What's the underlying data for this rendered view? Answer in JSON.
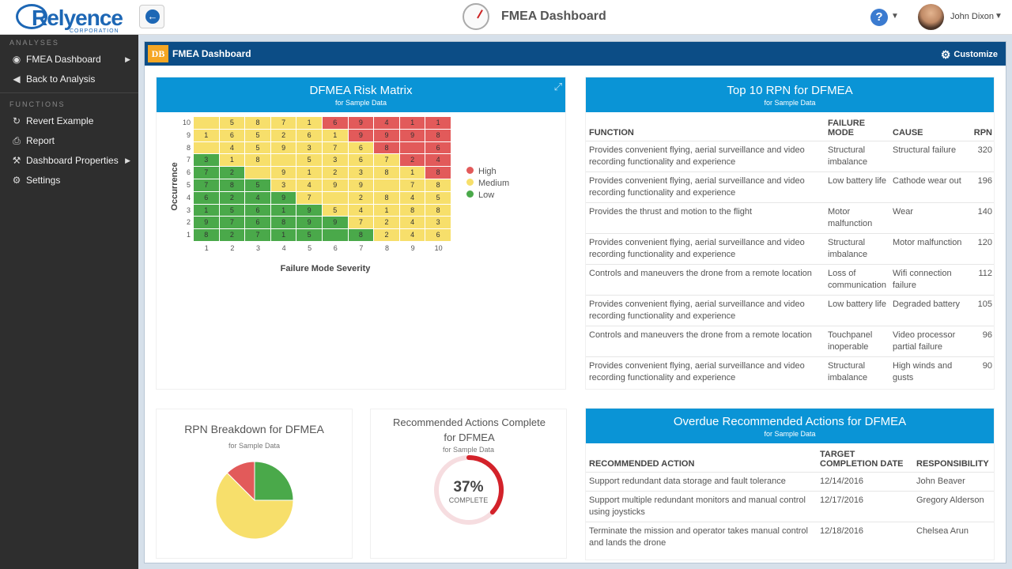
{
  "header": {
    "logo_text": "Relyence",
    "logo_sub": "CORPORATION",
    "title": "FMEA Dashboard",
    "user": "John Dixon"
  },
  "sidebar": {
    "analyses_label": "ANALYSES",
    "functions_label": "FUNCTIONS",
    "analyses": [
      {
        "label": "FMEA Dashboard",
        "icon": "dashboard-icon"
      },
      {
        "label": "Back to Analysis",
        "icon": "back-arrow-icon"
      }
    ],
    "functions": [
      {
        "label": "Revert Example",
        "icon": "revert-icon"
      },
      {
        "label": "Report",
        "icon": "print-icon"
      },
      {
        "label": "Dashboard Properties",
        "icon": "wrench-icon"
      },
      {
        "label": "Settings",
        "icon": "gear-icon"
      }
    ]
  },
  "panel": {
    "badge": "DB",
    "title": "FMEA Dashboard",
    "customize": "Customize"
  },
  "risk_matrix": {
    "title": "DFMEA Risk Matrix",
    "subtitle": "for Sample Data",
    "ylabel": "Occurrence",
    "xlabel": "Failure Mode Severity",
    "legend": [
      {
        "label": "High",
        "color": "#e25a5a"
      },
      {
        "label": "Medium",
        "color": "#f7df6b"
      },
      {
        "label": "Low",
        "color": "#4aa94a"
      }
    ],
    "colors": {
      "H": "#e25a5a",
      "M": "#f7df6b",
      "L": "#4aa94a"
    },
    "rows": [
      {
        "occ": "10",
        "cells": [
          [
            "M",
            ""
          ],
          [
            "M",
            "5"
          ],
          [
            "M",
            "8"
          ],
          [
            "M",
            "7"
          ],
          [
            "M",
            "1"
          ],
          [
            "H",
            "6"
          ],
          [
            "H",
            "9"
          ],
          [
            "H",
            "4"
          ],
          [
            "H",
            "1"
          ],
          [
            "H",
            "1"
          ]
        ]
      },
      {
        "occ": "9",
        "cells": [
          [
            "M",
            "1"
          ],
          [
            "M",
            "6"
          ],
          [
            "M",
            "5"
          ],
          [
            "M",
            "2"
          ],
          [
            "M",
            "6"
          ],
          [
            "M",
            "1"
          ],
          [
            "H",
            "9"
          ],
          [
            "H",
            "9"
          ],
          [
            "H",
            "9"
          ],
          [
            "H",
            "8"
          ]
        ]
      },
      {
        "occ": "8",
        "cells": [
          [
            "M",
            ""
          ],
          [
            "M",
            "4"
          ],
          [
            "M",
            "5"
          ],
          [
            "M",
            "9"
          ],
          [
            "M",
            "3"
          ],
          [
            "M",
            "7"
          ],
          [
            "M",
            "6"
          ],
          [
            "H",
            "8"
          ],
          [
            "H",
            ""
          ],
          [
            "H",
            "6"
          ]
        ]
      },
      {
        "occ": "7",
        "cells": [
          [
            "L",
            "3"
          ],
          [
            "M",
            "1"
          ],
          [
            "M",
            "8"
          ],
          [
            "M",
            ""
          ],
          [
            "M",
            "5"
          ],
          [
            "M",
            "3"
          ],
          [
            "M",
            "6"
          ],
          [
            "M",
            "7"
          ],
          [
            "H",
            "2"
          ],
          [
            "H",
            "4"
          ]
        ]
      },
      {
        "occ": "6",
        "cells": [
          [
            "L",
            "7"
          ],
          [
            "L",
            "2"
          ],
          [
            "M",
            ""
          ],
          [
            "M",
            "9"
          ],
          [
            "M",
            "1"
          ],
          [
            "M",
            "2"
          ],
          [
            "M",
            "3"
          ],
          [
            "M",
            "8"
          ],
          [
            "M",
            "1"
          ],
          [
            "H",
            "8"
          ]
        ]
      },
      {
        "occ": "5",
        "cells": [
          [
            "L",
            "7"
          ],
          [
            "L",
            "8"
          ],
          [
            "L",
            "5"
          ],
          [
            "M",
            "3"
          ],
          [
            "M",
            "4"
          ],
          [
            "M",
            "9"
          ],
          [
            "M",
            "9"
          ],
          [
            "M",
            ""
          ],
          [
            "M",
            "7"
          ],
          [
            "M",
            "8"
          ]
        ]
      },
      {
        "occ": "4",
        "cells": [
          [
            "L",
            "6"
          ],
          [
            "L",
            "2"
          ],
          [
            "L",
            "4"
          ],
          [
            "L",
            "9"
          ],
          [
            "M",
            "7"
          ],
          [
            "M",
            ""
          ],
          [
            "M",
            "2"
          ],
          [
            "M",
            "8"
          ],
          [
            "M",
            "4"
          ],
          [
            "M",
            "5"
          ]
        ]
      },
      {
        "occ": "3",
        "cells": [
          [
            "L",
            "1"
          ],
          [
            "L",
            "5"
          ],
          [
            "L",
            "6"
          ],
          [
            "L",
            "1"
          ],
          [
            "L",
            "9"
          ],
          [
            "M",
            "5"
          ],
          [
            "M",
            "4"
          ],
          [
            "M",
            "1"
          ],
          [
            "M",
            "8"
          ],
          [
            "M",
            "8"
          ]
        ]
      },
      {
        "occ": "2",
        "cells": [
          [
            "L",
            "9"
          ],
          [
            "L",
            "7"
          ],
          [
            "L",
            "6"
          ],
          [
            "L",
            "8"
          ],
          [
            "L",
            "9"
          ],
          [
            "L",
            "9"
          ],
          [
            "M",
            "7"
          ],
          [
            "M",
            "2"
          ],
          [
            "M",
            "4"
          ],
          [
            "M",
            "3"
          ]
        ]
      },
      {
        "occ": "1",
        "cells": [
          [
            "L",
            "8"
          ],
          [
            "L",
            "2"
          ],
          [
            "L",
            "7"
          ],
          [
            "L",
            "1"
          ],
          [
            "L",
            "5"
          ],
          [
            "L",
            ""
          ],
          [
            "L",
            "8"
          ],
          [
            "M",
            "2"
          ],
          [
            "M",
            "4"
          ],
          [
            "M",
            "6"
          ]
        ]
      }
    ],
    "severity": [
      "1",
      "2",
      "3",
      "4",
      "5",
      "6",
      "7",
      "8",
      "9",
      "10"
    ]
  },
  "top_rpn": {
    "title": "Top 10 RPN for DFMEA",
    "subtitle": "for Sample Data",
    "columns": [
      "FUNCTION",
      "FAILURE MODE",
      "CAUSE",
      "RPN"
    ],
    "rows": [
      [
        "Provides convenient flying, aerial surveillance and video recording functionality and experience",
        "Structural imbalance",
        "Structural failure",
        "320"
      ],
      [
        "Provides convenient flying, aerial surveillance and video recording functionality and experience",
        "Low battery life",
        "Cathode wear out",
        "196"
      ],
      [
        "Provides the thrust and motion to the flight",
        "Motor malfunction",
        "Wear",
        "140"
      ],
      [
        "Provides convenient flying, aerial surveillance and video recording functionality and experience",
        "Structural imbalance",
        "Motor malfunction",
        "120"
      ],
      [
        "Controls and maneuvers the drone from a remote location",
        "Loss of communication",
        "Wifi connection failure",
        "112"
      ],
      [
        "Provides convenient flying, aerial surveillance and video recording functionality and experience",
        "Low battery life",
        "Degraded battery",
        "105"
      ],
      [
        "Controls and maneuvers the drone from a remote location",
        "Touchpanel inoperable",
        "Video processor partial failure",
        "96"
      ],
      [
        "Provides convenient flying, aerial surveillance and video recording functionality and experience",
        "Structural imbalance",
        "High winds and gusts",
        "90"
      ]
    ]
  },
  "rpn_breakdown": {
    "title": "RPN Breakdown for DFMEA",
    "subtitle": "for Sample Data",
    "chart_data": {
      "type": "pie",
      "values": [
        25,
        62.5,
        12.5
      ],
      "colors": [
        "#4aa94a",
        "#f7df6b",
        "#e25a5a"
      ]
    }
  },
  "actions_complete": {
    "title": "Recommended Actions Complete for DFMEA",
    "subtitle": "for Sample Data",
    "percent": "37%",
    "percent_value": 37,
    "label": "COMPLETE",
    "color": "#d3222a",
    "track": "#f6dde0"
  },
  "overdue": {
    "title": "Overdue Recommended Actions for DFMEA",
    "subtitle": "for Sample Data",
    "columns": [
      "RECOMMENDED ACTION",
      "TARGET COMPLETION DATE",
      "RESPONSIBILITY"
    ],
    "rows": [
      [
        "Support redundant data storage and fault tolerance",
        "12/14/2016",
        "John Beaver"
      ],
      [
        "Support multiple redundant monitors and manual control using joysticks",
        "12/17/2016",
        "Gregory Alderson"
      ],
      [
        "Terminate the mission and operator takes manual control and lands the drone",
        "12/18/2016",
        "Chelsea Arun"
      ]
    ]
  }
}
